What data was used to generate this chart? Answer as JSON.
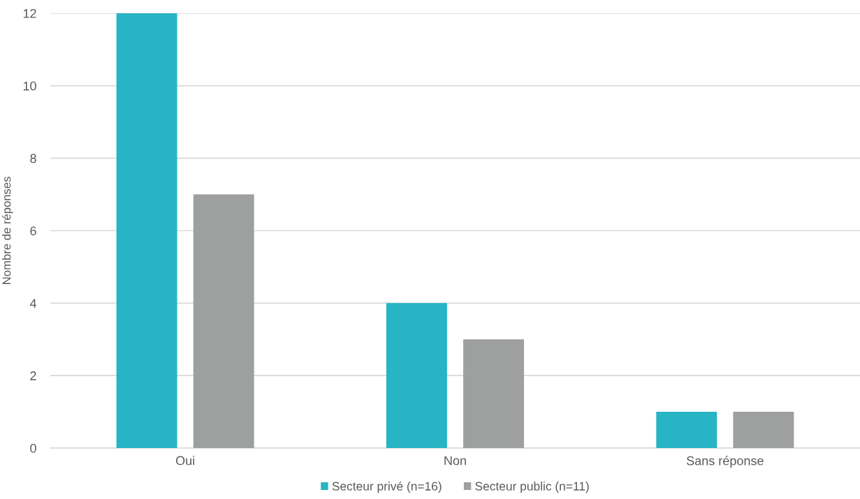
{
  "chart_data": {
    "type": "bar",
    "ylabel": "Nombre de réponses",
    "categories": [
      "Oui",
      "Non",
      "Sans réponse"
    ],
    "series": [
      {
        "name": "Secteur privé (n=16)",
        "color": "#27b4c4",
        "values": [
          12,
          4,
          1
        ]
      },
      {
        "name": "Secteur public (n=11)",
        "color": "#9ea09f",
        "values": [
          7,
          3,
          1
        ]
      }
    ],
    "ylim": [
      0,
      12
    ],
    "yticks": [
      0,
      2,
      4,
      6,
      8,
      10,
      12
    ],
    "grid": "y",
    "legend": "bottom"
  }
}
